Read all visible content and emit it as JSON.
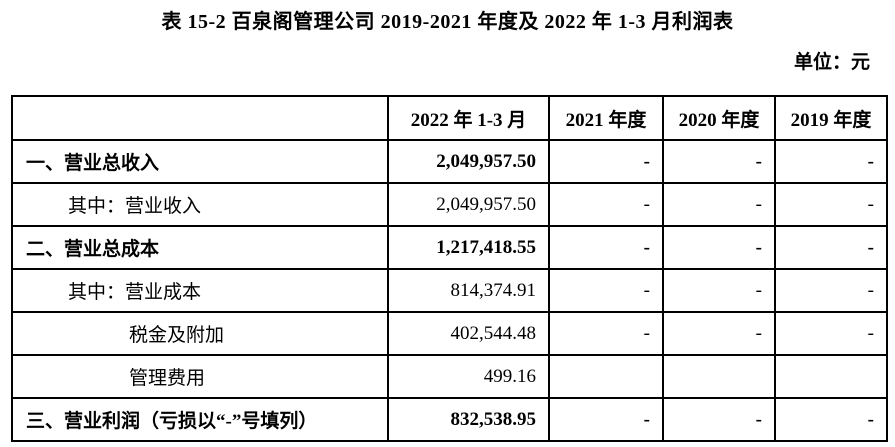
{
  "title": "表 15-2 百泉阁管理公司 2019-2021 年度及 2022 年 1-3 月利润表",
  "unit_label": "单位：元",
  "table": {
    "columns": [
      "",
      "2022 年 1-3 月",
      "2021 年度",
      "2020 年度",
      "2019 年度"
    ],
    "rows": [
      {
        "label": "一、营业总收入",
        "indent": 0,
        "bold": true,
        "values": [
          "2,049,957.50",
          "-",
          "-",
          "-"
        ]
      },
      {
        "label": "其中：营业收入",
        "indent": 1,
        "bold": false,
        "values": [
          "2,049,957.50",
          "-",
          "-",
          "-"
        ]
      },
      {
        "label": "二、营业总成本",
        "indent": 0,
        "bold": true,
        "values": [
          "1,217,418.55",
          "-",
          "-",
          "-"
        ]
      },
      {
        "label": "其中：营业成本",
        "indent": 1,
        "bold": false,
        "values": [
          "814,374.91",
          "-",
          "-",
          "-"
        ]
      },
      {
        "label": "税金及附加",
        "indent": 2,
        "bold": false,
        "values": [
          "402,544.48",
          "-",
          "-",
          "-"
        ]
      },
      {
        "label": "管理费用",
        "indent": 2,
        "bold": false,
        "values": [
          "499.16",
          "",
          "",
          ""
        ]
      },
      {
        "label": "三、营业利润（亏损以“-”号填列）",
        "indent": 0,
        "bold": true,
        "values": [
          "832,538.95",
          "-",
          "-",
          "-"
        ]
      }
    ]
  }
}
